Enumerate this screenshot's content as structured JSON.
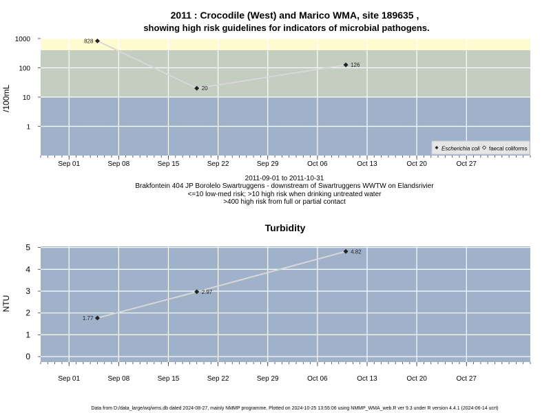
{
  "chart_data": [
    {
      "type": "scatter",
      "title": "2011 : Crocodile (West) and Marico WMA, site 189635 ,",
      "subtitle": "showing high risk guidelines for indicators of microbial pathogens.",
      "ylabel": "/100mL",
      "y_scale": "log",
      "ylim": [
        0.1,
        1000
      ],
      "xlim": [
        "2011-08-28",
        "2011-11-05"
      ],
      "yticks": [
        1,
        10,
        100,
        1000
      ],
      "ytick_labels": [
        "1",
        "10",
        "100",
        "1000"
      ],
      "xticks": [
        "2011-09-01",
        "2011-09-08",
        "2011-09-15",
        "2011-09-22",
        "2011-09-29",
        "2011-10-06",
        "2011-10-13",
        "2011-10-20",
        "2011-10-27"
      ],
      "xtick_labels": [
        "Sep 01",
        "Sep 08",
        "Sep 15",
        "Sep 22",
        "Sep 29",
        "Oct 06",
        "Oct 13",
        "Oct 20",
        "Oct 27"
      ],
      "bands": [
        {
          "from": 0.1,
          "to": 10,
          "color": "#a0b2ca"
        },
        {
          "from": 10,
          "to": 400,
          "color": "#c3cdc0"
        },
        {
          "from": 400,
          "to": 1000,
          "color": "#fdfbcf"
        }
      ],
      "grid": true,
      "series": [
        {
          "name": "Escherichia coli",
          "marker": "filled-diamond",
          "color": "#222222",
          "line_color": "#d8d8d8",
          "x": [
            "2011-09-05",
            "2011-09-19",
            "2011-10-10"
          ],
          "y": [
            828,
            20,
            126
          ],
          "labels": [
            "828",
            "20",
            "126"
          ]
        }
      ],
      "legend": {
        "placement": "bottom-right",
        "entries": [
          {
            "name": "Escherichia coli",
            "italic": true,
            "marker": "filled-diamond"
          },
          {
            "name": "faecal coliforms",
            "italic": false,
            "marker": "open-diamond"
          }
        ]
      },
      "captions": [
        "2011-09-01 to 2011-10-31",
        "Brakfontein 404 JP Borolelo Swartruggens - downstream of Swartruggens WWTW on Elandsrivier",
        "<=10 low-med risk; >10 high risk when drinking untreated water",
        ">400 high risk from full or partial contact"
      ]
    },
    {
      "type": "scatter",
      "title": "Turbidity",
      "ylabel": "NTU",
      "y_scale": "linear",
      "ylim": [
        -0.25,
        5.05
      ],
      "xlim": [
        "2011-08-28",
        "2011-11-05"
      ],
      "yticks": [
        0,
        1,
        2,
        3,
        4,
        5
      ],
      "ytick_labels": [
        "0",
        "1",
        "2",
        "3",
        "4",
        "5"
      ],
      "xticks": [
        "2011-09-01",
        "2011-09-08",
        "2011-09-15",
        "2011-09-22",
        "2011-09-29",
        "2011-10-06",
        "2011-10-13",
        "2011-10-20",
        "2011-10-27"
      ],
      "xtick_labels": [
        "Sep 01",
        "Sep 08",
        "Sep 15",
        "Sep 22",
        "Sep 29",
        "Oct 06",
        "Oct 13",
        "Oct 20",
        "Oct 27"
      ],
      "bands": [
        {
          "from": -0.25,
          "to": 5.05,
          "color": "#a0b2ca"
        }
      ],
      "grid": true,
      "series": [
        {
          "marker": "filled-diamond",
          "color": "#222222",
          "line_color": "#d8d8d8",
          "x": [
            "2011-09-05",
            "2011-09-19",
            "2011-10-10"
          ],
          "y": [
            1.77,
            2.97,
            4.82
          ],
          "labels": [
            "1.77",
            "2.97",
            "4.82"
          ]
        }
      ]
    }
  ],
  "footer": "Data from D:/data_large/wq/wms.db dated 2024-08-27, mainly NMMP programme. Plotted on 2024-10-25 13:55:06 using NMMP_WMA_web.R ver 9.3 under R version 4.4.1 (2024-06-14 ucrt)"
}
